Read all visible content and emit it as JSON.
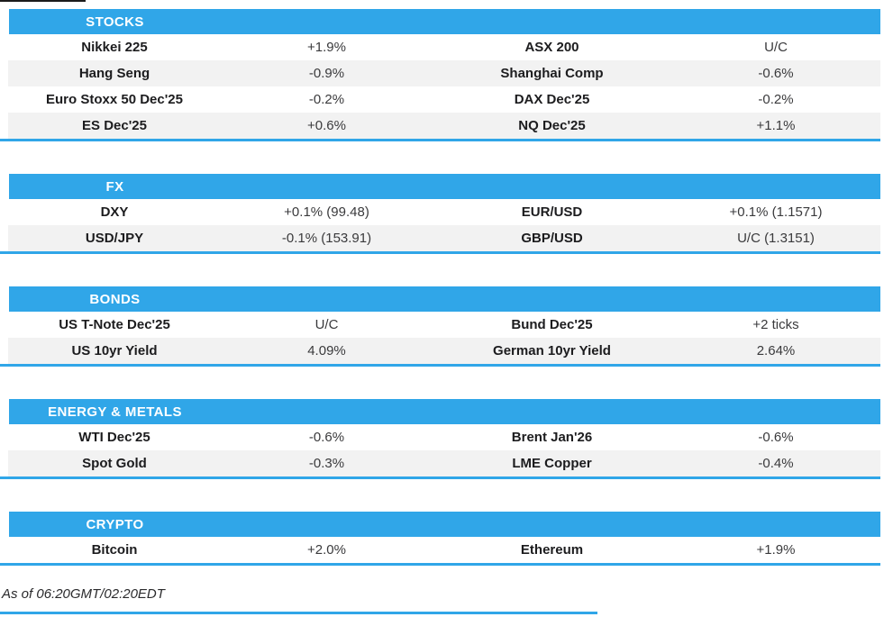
{
  "colors": {
    "accent_blue": "#30a6e8",
    "row_alt_gray": "#f2f2f2",
    "label_text": "#1c1c1e",
    "value_text": "#3a3a3c"
  },
  "footer": {
    "timestamp_note": "As of 06:20GMT/02:20EDT"
  },
  "sections": [
    {
      "title": "STOCKS",
      "rows": [
        {
          "l1": "Nikkei 225",
          "v1": "+1.9%",
          "l2": "ASX 200",
          "v2": "U/C"
        },
        {
          "l1": "Hang Seng",
          "v1": "-0.9%",
          "l2": "Shanghai Comp",
          "v2": "-0.6%"
        },
        {
          "l1": "Euro Stoxx 50 Dec'25",
          "v1": "-0.2%",
          "l2": "DAX Dec'25",
          "v2": "-0.2%"
        },
        {
          "l1": "ES Dec'25",
          "v1": "+0.6%",
          "l2": "NQ Dec'25",
          "v2": "+1.1%"
        }
      ]
    },
    {
      "title": "FX",
      "rows": [
        {
          "l1": "DXY",
          "v1": "+0.1% (99.48)",
          "l2": "EUR/USD",
          "v2": "+0.1% (1.1571)"
        },
        {
          "l1": "USD/JPY",
          "v1": "-0.1% (153.91)",
          "l2": "GBP/USD",
          "v2": "U/C (1.3151)"
        }
      ]
    },
    {
      "title": "BONDS",
      "rows": [
        {
          "l1": "US T-Note Dec'25",
          "v1": "U/C",
          "l2": "Bund Dec'25",
          "v2": "+2 ticks"
        },
        {
          "l1": "US 10yr Yield",
          "v1": "4.09%",
          "l2": "German 10yr Yield",
          "v2": "2.64%"
        }
      ]
    },
    {
      "title": "ENERGY & METALS",
      "rows": [
        {
          "l1": "WTI Dec'25",
          "v1": "-0.6%",
          "l2": "Brent Jan'26",
          "v2": "-0.6%"
        },
        {
          "l1": "Spot Gold",
          "v1": "-0.3%",
          "l2": "LME Copper",
          "v2": "-0.4%"
        }
      ]
    },
    {
      "title": "CRYPTO",
      "rows": [
        {
          "l1": "Bitcoin",
          "v1": "+2.0%",
          "l2": "Ethereum",
          "v2": "+1.9%"
        }
      ]
    }
  ]
}
